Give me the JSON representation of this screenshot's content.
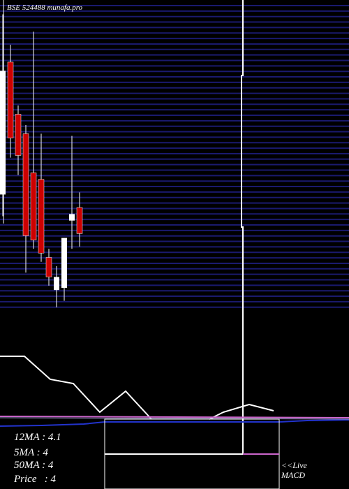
{
  "chart_data": {
    "type": "candlestick",
    "title": "BSE 524488 munafa.pro",
    "ylim": [
      3.6,
      5.0
    ],
    "up_color": "#ffffff",
    "down_color": "#cc0000",
    "candles": [
      {
        "open": 4.12,
        "high": 4.95,
        "low": 4.02,
        "close": 4.69
      },
      {
        "open": 4.73,
        "high": 4.81,
        "low": 4.29,
        "close": 4.38
      },
      {
        "open": 4.49,
        "high": 4.53,
        "low": 4.21,
        "close": 4.3
      },
      {
        "open": 4.4,
        "high": 4.44,
        "low": 3.76,
        "close": 3.93
      },
      {
        "open": 4.22,
        "high": 4.87,
        "low": 3.87,
        "close": 3.91
      },
      {
        "open": 4.19,
        "high": 4.4,
        "low": 3.81,
        "close": 3.85
      },
      {
        "open": 3.83,
        "high": 3.87,
        "low": 3.7,
        "close": 3.74
      },
      {
        "open": 3.68,
        "high": 3.79,
        "low": 3.6,
        "close": 3.74
      },
      {
        "open": 3.69,
        "high": 3.92,
        "low": 3.63,
        "close": 3.92
      },
      {
        "open": 4.0,
        "high": 4.39,
        "low": 3.87,
        "close": 4.03
      },
      {
        "open": 4.06,
        "high": 4.13,
        "low": 3.88,
        "close": 3.94
      }
    ],
    "legend_texts": [
      "12MA : 4.1",
      "5MA : 4",
      "50MA : 4",
      "Price   : 4"
    ],
    "live_text": "<<Live",
    "macd_text": "MACD"
  }
}
